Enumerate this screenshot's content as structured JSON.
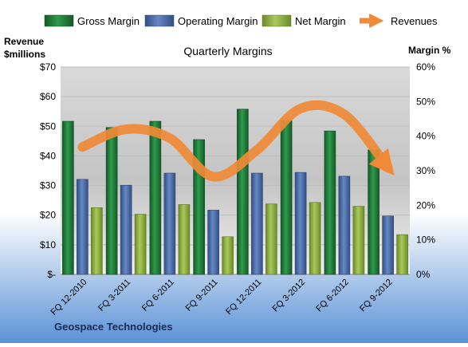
{
  "chart_data": {
    "type": "bar",
    "title": "Quarterly Margins",
    "left_axis_label_line1": "Revenue",
    "left_axis_label_line2": "$millions",
    "right_axis_label": "Margin %",
    "footer": "Geospace Technologies",
    "categories": [
      "FQ 12-2010",
      "FQ 3-2011",
      "FQ 6-2011",
      "FQ 9-2011",
      "FQ 12-2011",
      "FQ 3-2012",
      "FQ 6-2012",
      "FQ 9-2012"
    ],
    "left_ticks": [
      "$-",
      "$10",
      "$20",
      "$30",
      "$40",
      "$50",
      "$60",
      "$70"
    ],
    "right_ticks": [
      "0%",
      "10%",
      "20%",
      "30%",
      "40%",
      "50%",
      "60%"
    ],
    "ylim_left": [
      0,
      70
    ],
    "ylim_right": [
      0,
      60
    ],
    "series": [
      {
        "name": "Gross Margin",
        "axis": "right",
        "color": "#1e7a3a",
        "values": [
          44.3,
          42.5,
          44.3,
          39.0,
          47.8,
          44.5,
          41.5,
          36.0
        ]
      },
      {
        "name": "Operating Margin",
        "axis": "right",
        "color": "#4a6cab",
        "values": [
          27.5,
          25.8,
          29.3,
          18.6,
          29.3,
          29.5,
          28.4,
          16.9
        ]
      },
      {
        "name": "Net Margin",
        "axis": "right",
        "color": "#8caa3c",
        "values": [
          19.3,
          17.4,
          20.2,
          10.9,
          20.4,
          20.8,
          19.7,
          11.5
        ]
      },
      {
        "name": "Revenues",
        "axis": "left",
        "color": "#f08a36",
        "type": "line",
        "values": [
          43,
          49,
          46,
          33,
          42,
          56,
          54,
          36
        ]
      }
    ]
  }
}
